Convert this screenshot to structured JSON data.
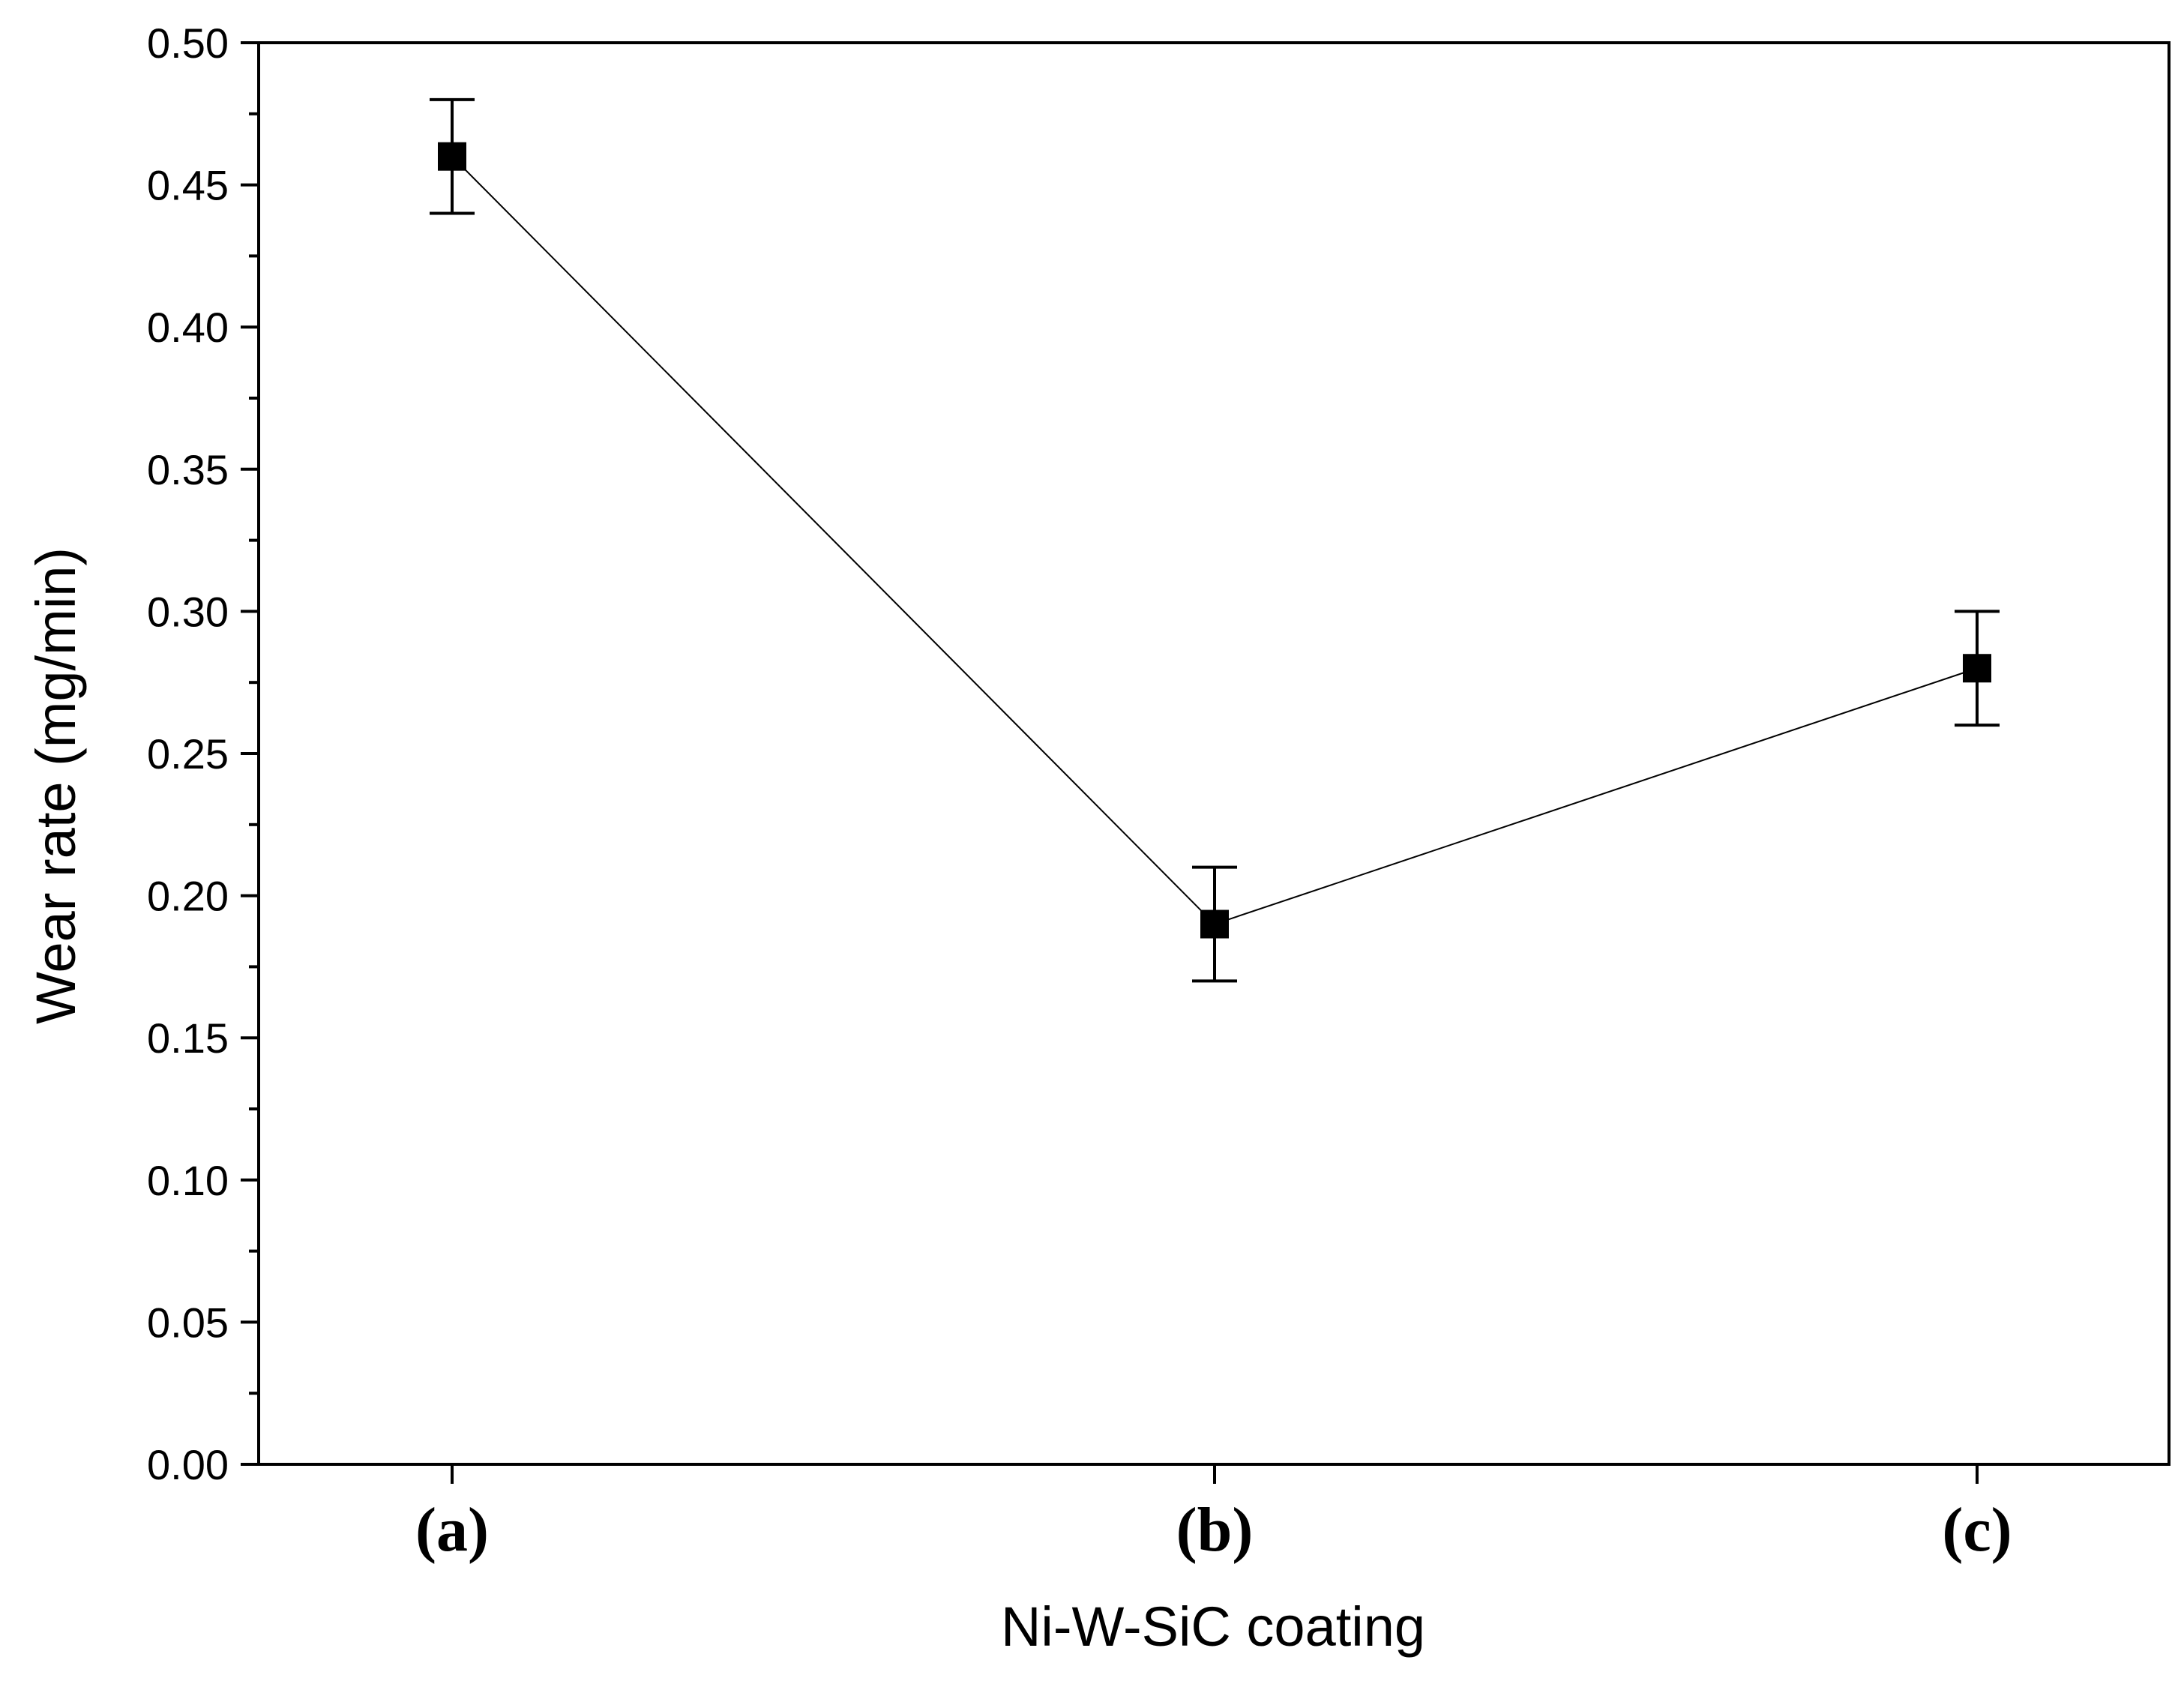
{
  "chart_data": {
    "type": "line",
    "title": "",
    "xlabel": "Ni-W-SiC coating",
    "ylabel": "Wear rate (mg/min)",
    "categories": [
      "(a)",
      "(b)",
      "(c)"
    ],
    "series": [
      {
        "name": "Wear rate",
        "values": [
          0.46,
          0.19,
          0.28
        ],
        "errors": [
          0.02,
          0.02,
          0.02
        ]
      }
    ],
    "ylim": [
      0.0,
      0.5
    ],
    "yticks": [
      "0.00",
      "0.05",
      "0.10",
      "0.15",
      "0.20",
      "0.25",
      "0.30",
      "0.35",
      "0.40",
      "0.45",
      "0.50"
    ],
    "grid": false,
    "legend": "none"
  }
}
